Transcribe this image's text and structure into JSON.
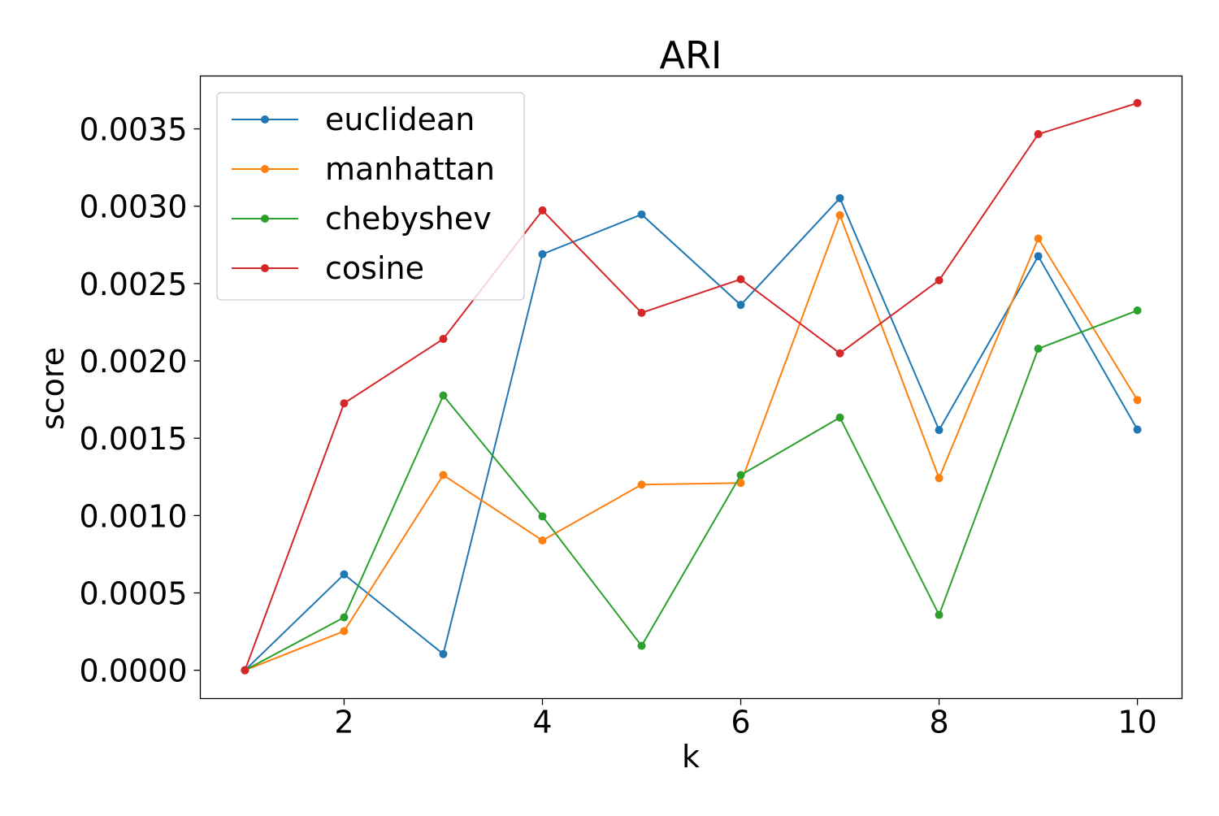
{
  "chart_data": {
    "type": "line",
    "title": "ARI",
    "xlabel": "k",
    "ylabel": "score",
    "xlim": [
      0.55,
      10.45
    ],
    "ylim": [
      -0.000183,
      0.003842
    ],
    "x_ticks": [
      2,
      4,
      6,
      8,
      10
    ],
    "x_tick_labels": [
      "2",
      "4",
      "6",
      "8",
      "10"
    ],
    "y_ticks": [
      0,
      0.0005,
      0.001,
      0.0015,
      0.002,
      0.0025,
      0.003,
      0.0035
    ],
    "y_tick_labels": [
      "0.0000",
      "0.0005",
      "0.0010",
      "0.0015",
      "0.0020",
      "0.0025",
      "0.0030",
      "0.0035"
    ],
    "grid": false,
    "legend_position": "top-left",
    "x": [
      1,
      2,
      3,
      4,
      5,
      6,
      7,
      8,
      9,
      10
    ],
    "series": [
      {
        "name": "euclidean",
        "color": "#1f77b4",
        "values": [
          0.0,
          0.00062,
          0.000105,
          0.00269,
          0.002947,
          0.002362,
          0.003052,
          0.001553,
          0.002677,
          0.001556
        ]
      },
      {
        "name": "manhattan",
        "color": "#ff7f0e",
        "values": [
          0.0,
          0.000253,
          0.001262,
          0.000839,
          0.0012,
          0.001211,
          0.002942,
          0.001242,
          0.002791,
          0.001747
        ]
      },
      {
        "name": "chebyshev",
        "color": "#2ca02c",
        "values": [
          0.0,
          0.000342,
          0.001776,
          0.000995,
          0.000158,
          0.001262,
          0.001634,
          0.000358,
          0.002079,
          0.002326
        ]
      },
      {
        "name": "cosine",
        "color": "#d62728",
        "values": [
          0.0,
          0.001726,
          0.002142,
          0.002973,
          0.002311,
          0.002528,
          0.002049,
          0.002521,
          0.003466,
          0.003667
        ]
      }
    ]
  }
}
